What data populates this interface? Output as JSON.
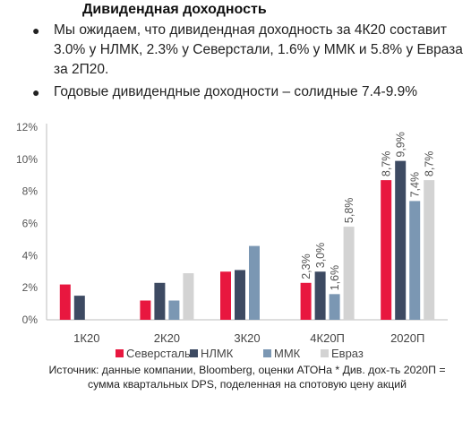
{
  "title": "Дивидендная доходность",
  "bullets": [
    "Мы ожидаем, что дивидендная доходность за 4К20 составит 3.0% у НЛМК, 2.3% у Северстали, 1.6% у ММК и 5.8% у Евраза за 2П20.",
    "Годовые дивидендные доходности – солидные 7.4-9.9%"
  ],
  "bullet_glyph": "●",
  "source_text": "Источник: данные компании, Bloomberg, оценки АТОНа * Див. дох-ть 2020П = сумма квартальных DPS, поделенная на спотовую цену акций",
  "chart_data": {
    "type": "bar",
    "categories": [
      "1К20",
      "2К20",
      "3К20",
      "4К20П",
      "2020П"
    ],
    "series": [
      {
        "name": "Северсталь",
        "color": "#e8173f",
        "values": [
          2.2,
          1.2,
          3.0,
          2.3,
          8.7
        ],
        "labels": [
          null,
          null,
          null,
          "2,3%",
          "8,7%"
        ]
      },
      {
        "name": "НЛМК",
        "color": "#3d4a62",
        "values": [
          1.5,
          2.3,
          3.1,
          3.0,
          9.9
        ],
        "labels": [
          null,
          null,
          null,
          "3,0%",
          "9,9%"
        ]
      },
      {
        "name": "ММК",
        "color": "#7b97b3",
        "values": [
          null,
          1.2,
          4.6,
          1.6,
          7.4
        ],
        "labels": [
          null,
          null,
          null,
          "1,6%",
          "7,4%"
        ]
      },
      {
        "name": "Евраз",
        "color": "#d3d3d3",
        "values": [
          null,
          2.9,
          null,
          5.8,
          8.7
        ],
        "labels": [
          null,
          null,
          null,
          "5,8%",
          "8,7%"
        ]
      }
    ],
    "yticks": [
      "0%",
      "2%",
      "4%",
      "6%",
      "8%",
      "10%",
      "12%"
    ],
    "ylim": [
      0,
      12
    ],
    "legend_position": "bottom",
    "grid": false
  }
}
